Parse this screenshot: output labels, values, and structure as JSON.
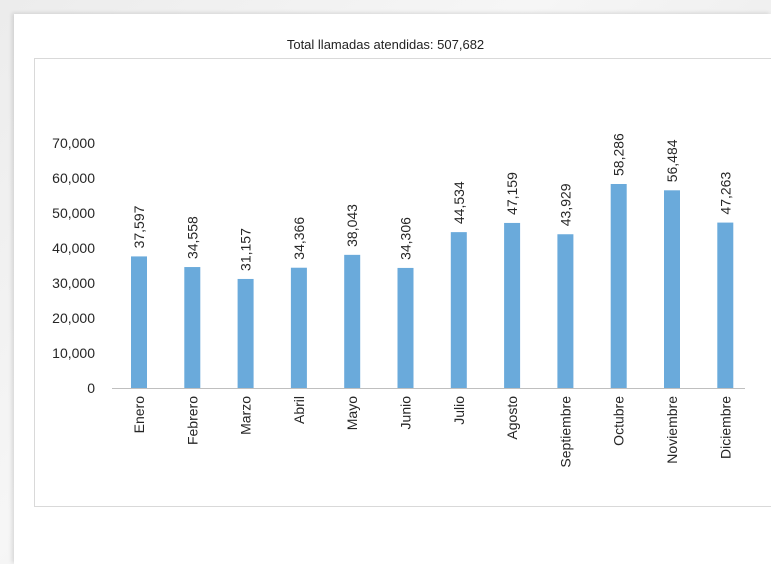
{
  "colors": {
    "bar": "#6aaadb",
    "axis": "#bfbfbf"
  },
  "chart_data": {
    "type": "bar",
    "title": "Total llamadas atendidas: 507,682",
    "xlabel": "",
    "ylabel": "",
    "categories": [
      "Enero",
      "Febrero",
      "Marzo",
      "Abril",
      "Mayo",
      "Junio",
      "Julio",
      "Agosto",
      "Septiembre",
      "Octubre",
      "Noviembre",
      "Diciembre"
    ],
    "values": [
      37597,
      34558,
      31157,
      34366,
      38043,
      34306,
      44534,
      47159,
      43929,
      58286,
      56484,
      47263
    ],
    "data_labels": [
      "37,597",
      "34,558",
      "31,157",
      "34,366",
      "38,043",
      "34,306",
      "44,534",
      "47,159",
      "43,929",
      "58,286",
      "56,484",
      "47,263"
    ],
    "ylim": [
      0,
      70000
    ],
    "y_ticks": [
      0,
      10000,
      20000,
      30000,
      40000,
      50000,
      60000,
      70000
    ],
    "y_tick_labels": [
      "0",
      "10,000",
      "20,000",
      "30,000",
      "40,000",
      "50,000",
      "60,000",
      "70,000"
    ],
    "grid": false,
    "legend": "none"
  }
}
